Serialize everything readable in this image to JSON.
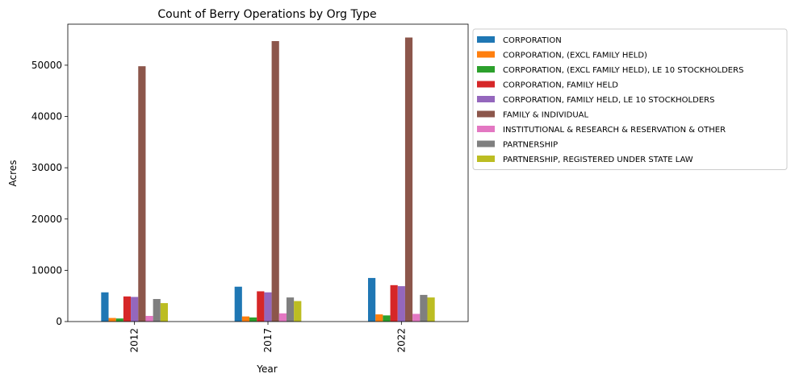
{
  "chart_data": {
    "type": "bar",
    "title": "Count of Berry Operations by Org Type",
    "xlabel": "Year",
    "ylabel": "Acres",
    "categories": [
      "2012",
      "2017",
      "2022"
    ],
    "ylim": [
      0,
      58000
    ],
    "yticks": [
      0,
      10000,
      20000,
      30000,
      40000,
      50000
    ],
    "grid": false,
    "legend_position": "outside-right-top",
    "series": [
      {
        "name": "CORPORATION",
        "color": "#1f77b4",
        "values": [
          5700,
          6800,
          8500
        ]
      },
      {
        "name": "CORPORATION, (EXCL FAMILY HELD)",
        "color": "#ff7f0e",
        "values": [
          700,
          1000,
          1400
        ]
      },
      {
        "name": "CORPORATION, (EXCL FAMILY HELD), LE 10 STOCKHOLDERS",
        "color": "#2ca02c",
        "values": [
          600,
          800,
          1200
        ]
      },
      {
        "name": "CORPORATION, FAMILY HELD",
        "color": "#d62728",
        "values": [
          4900,
          5900,
          7100
        ]
      },
      {
        "name": "CORPORATION, FAMILY HELD, LE 10 STOCKHOLDERS",
        "color": "#9467bd",
        "values": [
          4800,
          5700,
          6900
        ]
      },
      {
        "name": "FAMILY & INDIVIDUAL",
        "color": "#8c564b",
        "values": [
          49800,
          54700,
          55400
        ]
      },
      {
        "name": "INSTITUTIONAL & RESEARCH & RESERVATION & OTHER",
        "color": "#e377c2",
        "values": [
          1100,
          1600,
          1500
        ]
      },
      {
        "name": "PARTNERSHIP",
        "color": "#7f7f7f",
        "values": [
          4400,
          4700,
          5200
        ]
      },
      {
        "name": "PARTNERSHIP, REGISTERED UNDER STATE LAW",
        "color": "#bcbd22",
        "values": [
          3600,
          4000,
          4700
        ]
      }
    ]
  }
}
